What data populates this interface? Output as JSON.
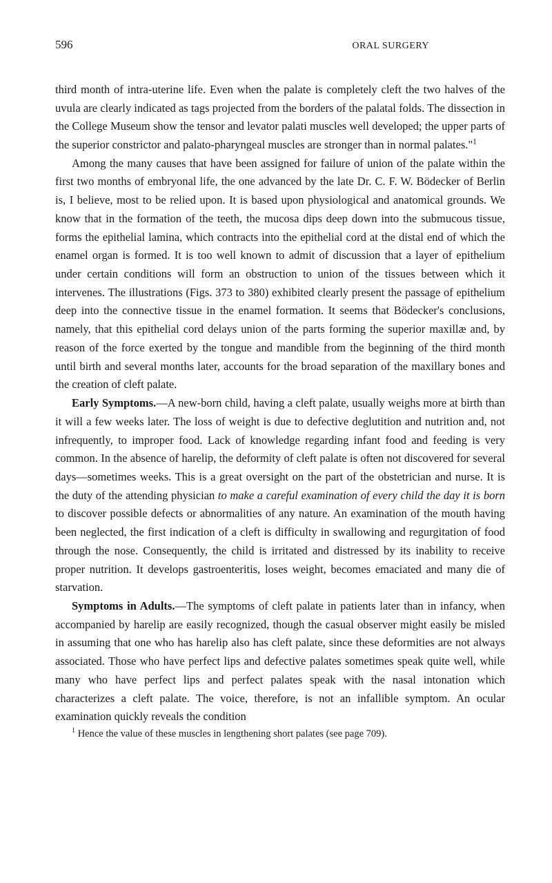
{
  "header": {
    "page_number": "596",
    "running_title": "ORAL SURGERY"
  },
  "paragraphs": {
    "p1": "third month of intra-uterine life. Even when the palate is completely cleft the two halves of the uvula are clearly indicated as tags projected from the borders of the palatal folds. The dissection in the College Museum show the tensor and levator palati muscles well developed; the upper parts of the supe­rior constrictor and palato-pharyngeal muscles are stronger than in normal palates.\"",
    "p1_sup": "1",
    "p2": "Among the many causes that have been assigned for failure of union of the palate within the first two months of embryonal life, the one advanced by the late Dr. C. F. W. Bödecker of Berlin is, I believe, most to be relied upon. It is based upon physiological and anatomical grounds. We know that in the formation of the teeth, the mucosa dips deep down into the submucous tissue, forms the epithelial lamina, which contracts into the epithelial cord at the dis­tal end of which the enamel organ is formed. It is too well known to admit of discussion that a layer of epithelium under certain conditions will form an obstruction to union of the tissues between which it intervenes. The illus­trations (Figs. 373 to 380) exhibited clearly present the passage of epithelium deep into the connective tissue in the enamel formation. It seems that Bödecker's conclusions, namely, that this epithelial cord delays union of the parts forming the superior maxillæ and, by reason of the force exerted by the tongue and mandible from the beginning of the third month until birth and several months later, accounts for the broad separation of the maxillary bones and the creation of cleft palate.",
    "p3_label": "Early Symptoms.",
    "p3": "—A new-born child, having a cleft palate, usually weighs more at birth than it will a few weeks later. The loss of weight is due to defective deglutition and nutrition and, not infrequently, to improper food. Lack of knowledge regarding infant food and feeding is very common. In the absence of harelip, the deformity of cleft palate is often not discovered for several days—sometimes weeks. This is a great oversight on the part of the obstetrician and nurse. It is the duty of the attending physician ",
    "p3_italic": "to make a careful examination of every child the day it is born",
    "p3_after": " to discover possible defects or abnormalities of any nature. An examination of the mouth having been neglected, the first indication of a cleft is difficulty in swallowing and regurgi­tation of food through the nose. Consequently, the child is irritated and distressed by its inability to receive proper nutrition. It develops gastro­enteritis, loses weight, becomes emaciated and many die of starvation.",
    "p4_label": "Symptoms in Adults.",
    "p4": "—The symptoms of cleft palate in patients later than in infancy, when accompanied by harelip are easily recognized, though the casual observer might easily be misled in assuming that one who has harelip also has cleft palate, since these deformities are not always associated. Those who have perfect lips and defective palates sometimes speak quite well, while many who have perfect lips and perfect palates speak with the nasal intonation which characterizes a cleft palate. The voice, therefore, is not an infallible symptom. An ocular examination quickly reveals the condition"
  },
  "footnote": {
    "marker": "1",
    "text": " Hence the value of these muscles in lengthening short palates (see page 709)."
  }
}
